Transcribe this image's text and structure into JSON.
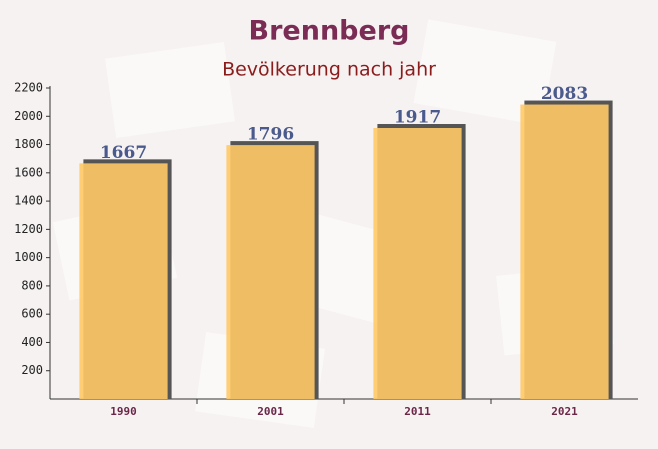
{
  "chart_data": {
    "type": "bar",
    "title": "Brennberg",
    "subtitle": "Bevölkerung nach jahr",
    "categories": [
      "1990",
      "2001",
      "2011",
      "2021"
    ],
    "values": [
      1667,
      1796,
      1917,
      2083
    ],
    "color": "#ffc966",
    "ylim": [
      0,
      2200
    ],
    "yticks": [
      200,
      400,
      600,
      800,
      1000,
      1200,
      1400,
      1600,
      1800,
      2000,
      2200
    ],
    "grid": false
  }
}
